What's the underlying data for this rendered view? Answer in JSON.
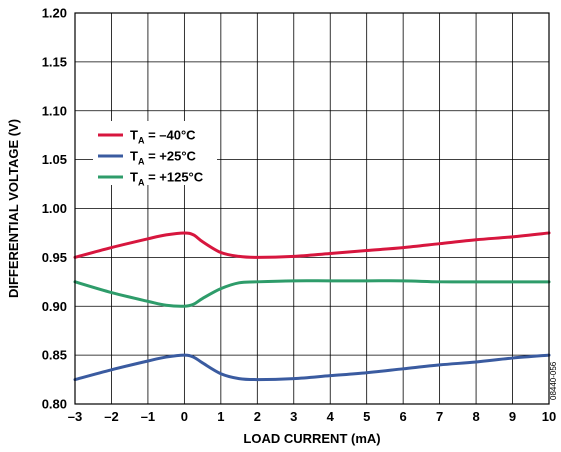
{
  "chart_data": {
    "type": "line",
    "title": "",
    "xlabel": "LOAD CURRENT (mA)",
    "ylabel": "DIFFERENTIAL VOLTAGE (V)",
    "xlim": [
      -3,
      10
    ],
    "ylim": [
      0.8,
      1.2
    ],
    "x_ticks": [
      "–3",
      "–2",
      "–1",
      "0",
      "1",
      "2",
      "3",
      "4",
      "5",
      "6",
      "7",
      "8",
      "9",
      "10"
    ],
    "y_ticks": [
      "0.80",
      "0.85",
      "0.90",
      "0.95",
      "1.00",
      "1.05",
      "1.10",
      "1.15",
      "1.20"
    ],
    "grid": true,
    "legend_position": "top-left",
    "figure_code": "08440-056",
    "series": [
      {
        "label_main": "T",
        "label_sub": "A",
        "label_rest": " = –40°C",
        "color": "#d7163e",
        "points": [
          [
            -3,
            0.95
          ],
          [
            -2,
            0.96
          ],
          [
            -1,
            0.969
          ],
          [
            -0.5,
            0.973
          ],
          [
            0,
            0.975
          ],
          [
            0.25,
            0.973
          ],
          [
            0.5,
            0.966
          ],
          [
            1,
            0.955
          ],
          [
            1.5,
            0.951
          ],
          [
            2,
            0.95
          ],
          [
            3,
            0.951
          ],
          [
            4,
            0.954
          ],
          [
            5,
            0.957
          ],
          [
            6,
            0.96
          ],
          [
            7,
            0.964
          ],
          [
            8,
            0.968
          ],
          [
            9,
            0.971
          ],
          [
            10,
            0.975
          ]
        ]
      },
      {
        "label_main": "T",
        "label_sub": "A",
        "label_rest": " = +25°C",
        "color": "#3a5ba0",
        "points": [
          [
            -3,
            0.825
          ],
          [
            -2,
            0.835
          ],
          [
            -1,
            0.844
          ],
          [
            -0.5,
            0.848
          ],
          [
            0,
            0.85
          ],
          [
            0.25,
            0.848
          ],
          [
            0.5,
            0.842
          ],
          [
            1,
            0.831
          ],
          [
            1.5,
            0.826
          ],
          [
            2,
            0.825
          ],
          [
            3,
            0.826
          ],
          [
            4,
            0.829
          ],
          [
            5,
            0.832
          ],
          [
            6,
            0.836
          ],
          [
            7,
            0.84
          ],
          [
            8,
            0.843
          ],
          [
            9,
            0.847
          ],
          [
            10,
            0.85
          ]
        ]
      },
      {
        "label_main": "T",
        "label_sub": "A",
        "label_rest": " = +125°C",
        "color": "#2e9c6a",
        "points": [
          [
            -3,
            0.925
          ],
          [
            -2,
            0.914
          ],
          [
            -1,
            0.905
          ],
          [
            -0.5,
            0.901
          ],
          [
            0,
            0.9
          ],
          [
            0.25,
            0.902
          ],
          [
            0.5,
            0.908
          ],
          [
            1,
            0.918
          ],
          [
            1.5,
            0.924
          ],
          [
            2,
            0.925
          ],
          [
            3,
            0.926
          ],
          [
            4,
            0.926
          ],
          [
            5,
            0.926
          ],
          [
            6,
            0.926
          ],
          [
            7,
            0.925
          ],
          [
            8,
            0.925
          ],
          [
            9,
            0.925
          ],
          [
            10,
            0.925
          ]
        ]
      }
    ]
  }
}
